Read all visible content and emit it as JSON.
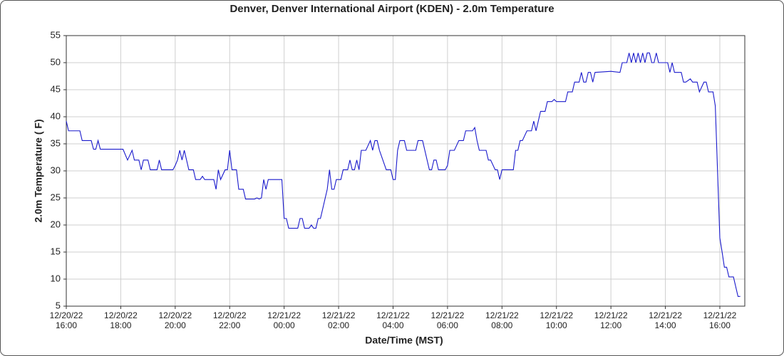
{
  "chart_data": {
    "type": "line",
    "title": "Denver, Denver International Airport (KDEN) - 2.0m Temperature",
    "xlabel": "Date/Time (MST)",
    "ylabel": "2.0m Temperature ( F)",
    "color": "#1a1acc",
    "grid": true,
    "xlim": [
      "12/20/22 16:00",
      "12/21/22 16:55"
    ],
    "xticks": [
      {
        "value": "12/20/22 16:00",
        "label": "12/20/22\n16:00"
      },
      {
        "value": "12/20/22 18:00",
        "label": "12/20/22\n18:00"
      },
      {
        "value": "12/20/22 20:00",
        "label": "12/20/22\n20:00"
      },
      {
        "value": "12/20/22 22:00",
        "label": "12/20/22\n22:00"
      },
      {
        "value": "12/21/22 00:00",
        "label": "12/21/22\n00:00"
      },
      {
        "value": "12/21/22 02:00",
        "label": "12/21/22\n02:00"
      },
      {
        "value": "12/21/22 04:00",
        "label": "12/21/22\n04:00"
      },
      {
        "value": "12/21/22 06:00",
        "label": "12/21/22\n06:00"
      },
      {
        "value": "12/21/22 08:00",
        "label": "12/21/22\n08:00"
      },
      {
        "value": "12/21/22 10:00",
        "label": "12/21/22\n10:00"
      },
      {
        "value": "12/21/22 12:00",
        "label": "12/21/22\n12:00"
      },
      {
        "value": "12/21/22 14:00",
        "label": "12/21/22\n14:00"
      },
      {
        "value": "12/21/22 16:00",
        "label": "12/21/22\n16:00"
      }
    ],
    "ylim": [
      5,
      55
    ],
    "yticks": [
      5,
      10,
      15,
      20,
      25,
      30,
      35,
      40,
      45,
      50,
      55
    ],
    "x": [
      "12/20/22 16:00",
      "12/20/22 16:05",
      "12/20/22 16:30",
      "12/20/22 16:35",
      "12/20/22 16:55",
      "12/20/22 17:00",
      "12/20/22 17:05",
      "12/20/22 17:10",
      "12/20/22 17:15",
      "12/20/22 17:55",
      "12/20/22 18:00",
      "12/20/22 18:05",
      "12/20/22 18:15",
      "12/20/22 18:25",
      "12/20/22 18:30",
      "12/20/22 18:40",
      "12/20/22 18:45",
      "12/20/22 18:50",
      "12/20/22 19:00",
      "12/20/22 19:05",
      "12/20/22 19:20",
      "12/20/22 19:25",
      "12/20/22 19:30",
      "12/20/22 19:55",
      "12/20/22 20:00",
      "12/20/22 20:05",
      "12/20/22 20:10",
      "12/20/22 20:15",
      "12/20/22 20:20",
      "12/20/22 20:25",
      "12/20/22 20:30",
      "12/20/22 20:40",
      "12/20/22 20:45",
      "12/20/22 20:55",
      "12/20/22 21:00",
      "12/20/22 21:05",
      "12/20/22 21:25",
      "12/20/22 21:30",
      "12/20/22 21:35",
      "12/20/22 21:40",
      "12/20/22 21:50",
      "12/20/22 21:55",
      "12/20/22 22:00",
      "12/20/22 22:05",
      "12/20/22 22:15",
      "12/20/22 22:20",
      "12/20/22 22:30",
      "12/20/22 22:35",
      "12/20/22 22:55",
      "12/20/22 23:00",
      "12/20/22 23:05",
      "12/20/22 23:10",
      "12/20/22 23:15",
      "12/20/22 23:20",
      "12/20/22 23:25",
      "12/20/22 23:55",
      "12/21/22 00:00",
      "12/21/22 00:05",
      "12/21/22 00:10",
      "12/21/22 00:30",
      "12/21/22 00:35",
      "12/21/22 00:40",
      "12/21/22 00:45",
      "12/21/22 00:55",
      "12/21/22 01:00",
      "12/21/22 01:05",
      "12/21/22 01:10",
      "12/21/22 01:15",
      "12/21/22 01:20",
      "12/21/22 01:25",
      "12/21/22 01:30",
      "12/21/22 01:35",
      "12/21/22 01:40",
      "12/21/22 01:45",
      "12/21/22 01:50",
      "12/21/22 01:55",
      "12/21/22 02:05",
      "12/21/22 02:10",
      "12/21/22 02:20",
      "12/21/22 02:25",
      "12/21/22 02:30",
      "12/21/22 02:35",
      "12/21/22 02:40",
      "12/21/22 02:45",
      "12/21/22 02:50",
      "12/21/22 03:00",
      "12/21/22 03:10",
      "12/21/22 03:15",
      "12/21/22 03:20",
      "12/21/22 03:25",
      "12/21/22 03:30",
      "12/21/22 03:45",
      "12/21/22 03:55",
      "12/21/22 04:00",
      "12/21/22 04:05",
      "12/21/22 04:10",
      "12/21/22 04:15",
      "12/21/22 04:25",
      "12/21/22 04:30",
      "12/21/22 04:50",
      "12/21/22 04:55",
      "12/21/22 05:05",
      "12/21/22 05:10",
      "12/21/22 05:20",
      "12/21/22 05:25",
      "12/21/22 05:30",
      "12/21/22 05:35",
      "12/21/22 05:40",
      "12/21/22 05:55",
      "12/21/22 06:00",
      "12/21/22 06:05",
      "12/21/22 06:15",
      "12/21/22 06:25",
      "12/21/22 06:35",
      "12/21/22 06:40",
      "12/21/22 06:55",
      "12/21/22 07:00",
      "12/21/22 07:05",
      "12/21/22 07:10",
      "12/21/22 07:25",
      "12/21/22 07:30",
      "12/21/22 07:35",
      "12/21/22 07:45",
      "12/21/22 07:50",
      "12/21/22 07:55",
      "12/21/22 08:00",
      "12/21/22 08:25",
      "12/21/22 08:30",
      "12/21/22 08:35",
      "12/21/22 08:40",
      "12/21/22 08:45",
      "12/21/22 08:55",
      "12/21/22 09:05",
      "12/21/22 09:10",
      "12/21/22 09:15",
      "12/21/22 09:20",
      "12/21/22 09:25",
      "12/21/22 09:35",
      "12/21/22 09:40",
      "12/21/22 09:50",
      "12/21/22 09:55",
      "12/21/22 10:00",
      "12/21/22 10:20",
      "12/21/22 10:25",
      "12/21/22 10:35",
      "12/21/22 10:40",
      "12/21/22 10:50",
      "12/21/22 10:55",
      "12/21/22 11:00",
      "12/21/22 11:05",
      "12/21/22 11:10",
      "12/21/22 11:15",
      "12/21/22 11:20",
      "12/21/22 11:25",
      "12/21/22 12:00",
      "12/21/22 12:20",
      "12/21/22 12:25",
      "12/21/22 12:35",
      "12/21/22 12:40",
      "12/21/22 12:45",
      "12/21/22 12:50",
      "12/21/22 12:55",
      "12/21/22 13:00",
      "12/21/22 13:05",
      "12/21/22 13:10",
      "12/21/22 13:15",
      "12/21/22 13:20",
      "12/21/22 13:25",
      "12/21/22 13:30",
      "12/21/22 13:35",
      "12/21/22 13:40",
      "12/21/22 13:45",
      "12/21/22 14:05",
      "12/21/22 14:10",
      "12/21/22 14:15",
      "12/21/22 14:20",
      "12/21/22 14:35",
      "12/21/22 14:40",
      "12/21/22 14:45",
      "12/21/22 14:55",
      "12/21/22 15:00",
      "12/21/22 15:10",
      "12/21/22 15:15",
      "12/21/22 15:25",
      "12/21/22 15:30",
      "12/21/22 15:35",
      "12/21/22 15:45",
      "12/21/22 15:50",
      "12/21/22 16:00",
      "12/21/22 16:05",
      "12/21/22 16:10",
      "12/21/22 16:15",
      "12/21/22 16:20",
      "12/21/22 16:30",
      "12/21/22 16:35",
      "12/21/22 16:40",
      "12/21/22 16:45"
    ],
    "values": [
      39.2,
      37.4,
      37.4,
      35.6,
      35.6,
      34,
      34,
      35.6,
      34,
      34,
      34,
      34,
      32,
      33.8,
      32,
      32,
      30.2,
      32,
      32,
      30.2,
      30.2,
      32,
      30.2,
      30.2,
      31,
      32,
      33.8,
      32,
      33.8,
      32,
      30.2,
      30.2,
      28.4,
      28.4,
      29,
      28.4,
      28.4,
      26.6,
      30.2,
      28.4,
      30.2,
      30.2,
      33.8,
      30.2,
      30.2,
      26.6,
      26.6,
      24.8,
      24.8,
      25,
      24.8,
      25,
      28.4,
      26.6,
      28.4,
      28.4,
      21.2,
      21.2,
      19.4,
      19.4,
      21.2,
      21.2,
      19.4,
      19.4,
      20,
      19.4,
      19.4,
      21.2,
      21.2,
      23,
      24.8,
      26.6,
      30.2,
      26.6,
      26.6,
      28.4,
      28.4,
      30.2,
      30.2,
      32,
      30.2,
      30.2,
      32,
      30.2,
      33.8,
      33.8,
      35.6,
      33.8,
      35.6,
      35.6,
      33.8,
      30.2,
      30.2,
      28.4,
      28.4,
      33.8,
      35.6,
      35.6,
      33.8,
      33.8,
      35.6,
      35.6,
      33.8,
      30.2,
      30.2,
      32,
      32,
      30.2,
      30.2,
      31,
      33.8,
      33.8,
      35.6,
      35.6,
      37.4,
      37.4,
      38,
      35.6,
      33.8,
      33.8,
      32,
      32,
      30.2,
      30.2,
      28.4,
      30.2,
      30.2,
      33.8,
      33.8,
      35.6,
      35.6,
      37.4,
      37.4,
      39.2,
      37.4,
      39.2,
      41,
      41,
      42.8,
      42.8,
      43.2,
      42.8,
      42.8,
      44.6,
      44.6,
      46.4,
      46.4,
      48.2,
      46.4,
      46.4,
      48.2,
      48.2,
      46.4,
      48.2,
      48.4,
      48.2,
      50,
      50,
      51.8,
      50,
      51.8,
      50,
      51.8,
      50,
      51.8,
      50,
      51.8,
      51.8,
      50,
      50,
      51.8,
      50,
      50,
      48.2,
      50,
      48.2,
      48.2,
      46.4,
      46.4,
      47,
      46.4,
      46.4,
      44.6,
      46.4,
      46.4,
      44.6,
      44.6,
      42,
      17.6,
      15,
      12.2,
      12.2,
      10.4,
      10.4,
      8.6,
      6.8,
      6.8
    ]
  }
}
